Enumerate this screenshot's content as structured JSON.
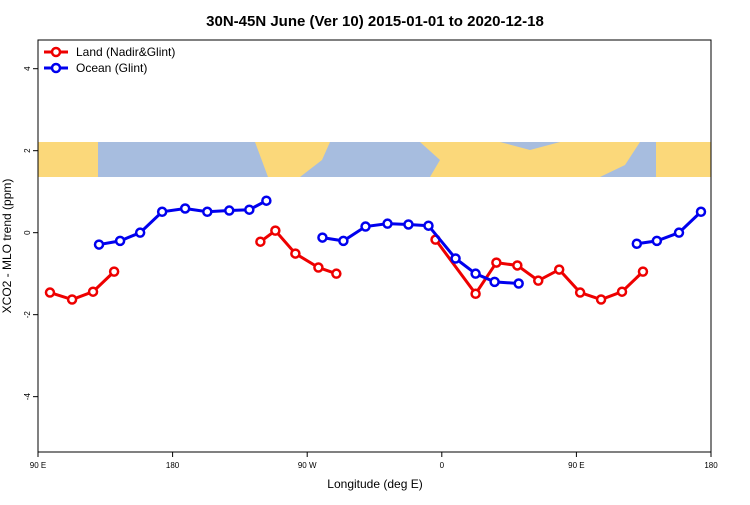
{
  "chart_data": {
    "type": "line",
    "title": "30N-45N June (Ver 10)   2015-01-01 to 2020-12-18",
    "xlabel": "Longitude (deg E)",
    "ylabel": "XCO2 - MLO trend (ppm)",
    "xlim": [
      90,
      540
    ],
    "ylim": [
      -5.35,
      4.7
    ],
    "xticks": [
      {
        "value": 90,
        "label": "90 E"
      },
      180,
      {
        "value": 270,
        "label": "90 W"
      },
      {
        "value": 360,
        "label": "0"
      },
      {
        "value": 450,
        "label": "90 E"
      },
      {
        "value": 540,
        "label": "180"
      }
    ],
    "yticks": [
      4,
      2,
      0,
      -2,
      -4
    ],
    "legend": "top-left",
    "series": [
      {
        "name": "Land (Nadir&Glint)",
        "color": "#ee0000",
        "x": [
          98,
          112.8,
          126.8,
          140.9,
          null,
          238.7,
          248.7,
          262.1,
          277.5,
          289.5,
          null,
          355.8,
          382.6,
          396.5,
          410.5,
          424.5,
          438.5,
          452.5,
          466.5,
          480.5,
          494.5
        ],
        "values": [
          -1.46,
          -1.63,
          -1.44,
          -0.95,
          null,
          -0.22,
          0.05,
          -0.51,
          -0.85,
          -1.0,
          null,
          -0.17,
          -1.49,
          -0.73,
          -0.8,
          -1.17,
          -0.9,
          -1.46,
          -1.63,
          -1.44,
          -0.95
        ]
      },
      {
        "name": "Ocean (Glint)",
        "color": "#0000ee",
        "x": [
          130.8,
          144.9,
          158.3,
          173.0,
          188.4,
          203.2,
          217.9,
          231.3,
          242.7,
          null,
          280.2,
          294.2,
          309.0,
          323.7,
          337.7,
          351.1,
          369.2,
          382.6,
          395.3,
          411.4,
          null,
          490.4,
          503.8,
          518.6,
          533.3
        ],
        "values": [
          -0.29,
          -0.2,
          0.0,
          0.51,
          0.59,
          0.51,
          0.54,
          0.56,
          0.78,
          null,
          -0.12,
          -0.2,
          0.15,
          0.22,
          0.2,
          0.17,
          -0.63,
          -1.0,
          -1.2,
          -1.24,
          null,
          -0.27,
          -0.2,
          0.0,
          0.51
        ]
      }
    ]
  }
}
